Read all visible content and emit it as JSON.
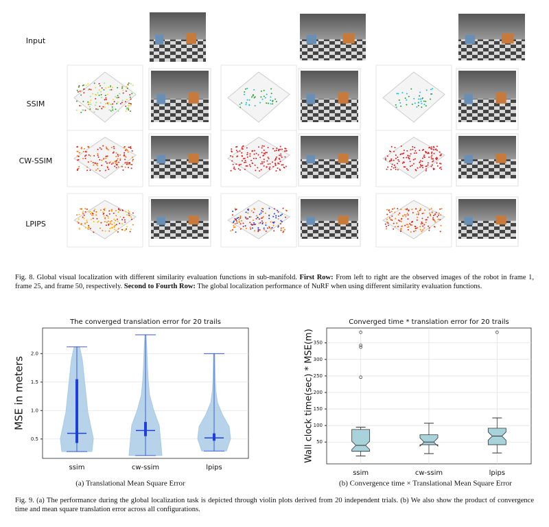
{
  "figure8": {
    "row_labels": [
      "Input",
      "SSIM",
      "CW-SSIM",
      "LPIPS"
    ],
    "caption": [
      {
        "text": "Fig. 8.  Global visual localization with different similarity evaluation functions in sub-manifold. ",
        "bold": false
      },
      {
        "text": "First Row:",
        "bold": true
      },
      {
        "text": " From left to right are the observed images of the robot in frame 1, frame 25, and frame 50, respectively. ",
        "bold": false
      },
      {
        "text": "Second to Fourth Row:",
        "bold": true
      },
      {
        "text": " The global localization performance of NuRF when using different similarity evaluation functions.",
        "bold": false
      }
    ]
  },
  "chart_data": [
    {
      "type": "violin",
      "title": "The converged translation error for 20 trails",
      "ylabel": "MSE in meters",
      "caption": "(a) Translational Mean Square Error",
      "grid": "y",
      "categories": [
        "ssim",
        "cw-ssim",
        "lpips"
      ],
      "ylim": [
        0.16,
        2.45
      ],
      "yticks": [
        0.5,
        {
          "value": 1,
          "label": "1.0"
        },
        1.5,
        {
          "value": 2,
          "label": "2.0"
        }
      ],
      "color": "#a9cbe6",
      "line_color": "#1f3fdc",
      "series": [
        {
          "min": 0.28,
          "q1": 0.43,
          "median": 0.6,
          "q3": 1.55,
          "max": 2.12,
          "density": [
            0.55,
            0.6,
            0.5,
            0.4,
            0.35,
            0.3,
            0.25,
            0.2,
            0.1
          ]
        },
        {
          "min": 0.21,
          "q1": 0.55,
          "median": 0.65,
          "q3": 0.8,
          "max": 2.33,
          "density": [
            0.6,
            0.55,
            0.5,
            0.3,
            0.15,
            0.1,
            0.07,
            0.05,
            0.02
          ]
        },
        {
          "min": 0.29,
          "q1": 0.47,
          "median": 0.52,
          "q3": 0.6,
          "max": 2.0,
          "density": [
            0.45,
            0.6,
            0.55,
            0.3,
            0.12,
            0.06,
            0.04,
            0.03,
            0.02
          ]
        }
      ]
    },
    {
      "type": "box",
      "title": "Converged time * translation error for 20 trails",
      "ylabel": "Wall clock time(sec) * MSE(m)",
      "caption": "(b) Convergence time × Translational Mean Square Error",
      "grid": "both",
      "categories": [
        "ssim",
        "cw-ssim",
        "lpips"
      ],
      "ylim": [
        -16,
        395
      ],
      "yticks": [
        50,
        100,
        150,
        200,
        250,
        300,
        350
      ],
      "color": "#a8d3db",
      "line_color": "#333333",
      "series": [
        {
          "low": 8,
          "q1": 22,
          "median": 40,
          "q3": 88,
          "high": 95,
          "outliers": [
            382,
            343,
            337,
            246
          ]
        },
        {
          "low": 15,
          "q1": 42,
          "median": 50,
          "q3": 72,
          "high": 107,
          "outliers": []
        },
        {
          "low": 17,
          "q1": 42,
          "median": 68,
          "q3": 92,
          "high": 123,
          "outliers": [
            382
          ]
        }
      ]
    }
  ],
  "figure9": {
    "caption": "Fig. 9.  (a) The performance during the global localization task is depicted through violin plots derived from 20 independent trials. (b) We also show the product of convergence time and mean square translation error across all configurations."
  }
}
